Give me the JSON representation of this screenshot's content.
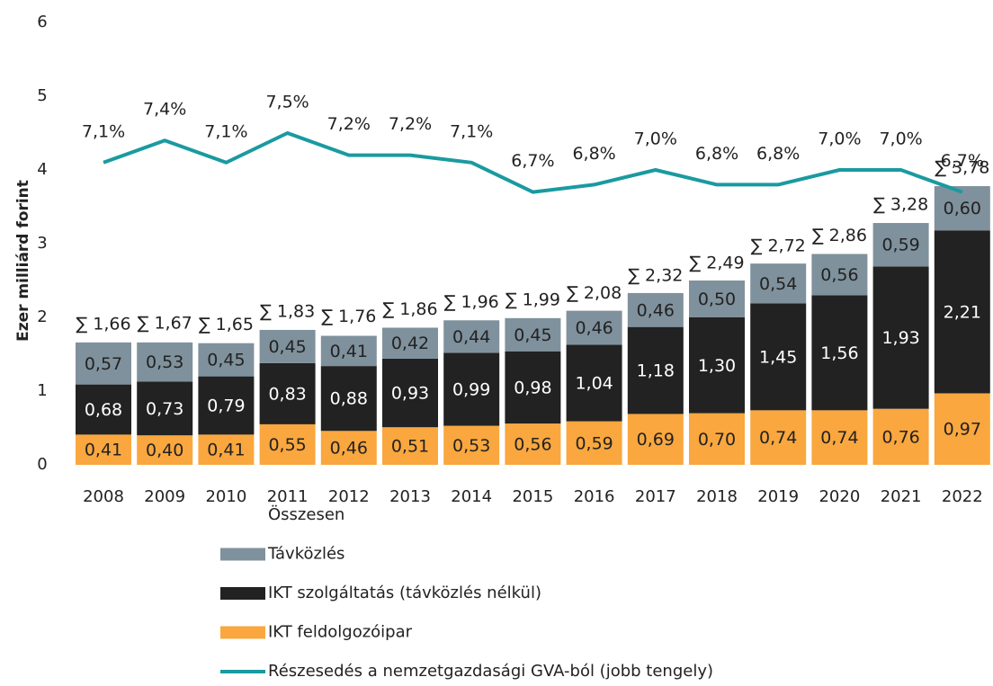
{
  "chart_data": {
    "type": "bar",
    "stacked": true,
    "y_label": "Ezer milliárd forint",
    "categories": [
      "2008",
      "2009",
      "2010",
      "2011",
      "2012",
      "2013",
      "2014",
      "2015",
      "2016",
      "2017",
      "2018",
      "2019",
      "2020",
      "2021",
      "2022"
    ],
    "ylim": [
      0,
      6
    ],
    "yticks": [
      0,
      1,
      2,
      3,
      4,
      5,
      6
    ],
    "y2lim": [
      3,
      9
    ],
    "series": [
      {
        "name": "Összesen",
        "type": "label",
        "values": [
          1.66,
          1.67,
          1.65,
          1.83,
          1.76,
          1.86,
          1.96,
          1.99,
          2.08,
          2.32,
          2.49,
          2.72,
          2.86,
          3.28,
          3.78
        ],
        "value_labels": [
          "∑ 1,66",
          "∑ 1,67",
          "∑ 1,65",
          "∑ 1,83",
          "∑ 1,76",
          "∑ 1,86",
          "∑ 1,96",
          "∑ 1,99",
          "∑ 2,08",
          "∑ 2,32",
          "∑ 2,49",
          "∑ 2,72",
          "∑ 2,86",
          "∑ 3,28",
          "∑ 3,78"
        ]
      },
      {
        "name": "Távközlés",
        "type": "bar",
        "color": "#7f919c",
        "label_color": "#222",
        "values": [
          0.57,
          0.53,
          0.45,
          0.45,
          0.41,
          0.42,
          0.44,
          0.45,
          0.46,
          0.46,
          0.5,
          0.54,
          0.56,
          0.59,
          0.6
        ],
        "value_labels": [
          "0,57",
          "0,53",
          "0,45",
          "0,45",
          "0,41",
          "0,42",
          "0,44",
          "0,45",
          "0,46",
          "0,46",
          "0,50",
          "0,54",
          "0,56",
          "0,59",
          "0,60"
        ]
      },
      {
        "name": "IKT szolgáltatás (távközlés nélkül)",
        "type": "bar",
        "color": "#222222",
        "label_color": "#ffffff",
        "values": [
          0.68,
          0.73,
          0.79,
          0.83,
          0.88,
          0.93,
          0.99,
          0.98,
          1.04,
          1.18,
          1.3,
          1.45,
          1.56,
          1.93,
          2.21
        ],
        "value_labels": [
          "0,68",
          "0,73",
          "0,79",
          "0,83",
          "0,88",
          "0,93",
          "0,99",
          "0,98",
          "1,04",
          "1,18",
          "1,30",
          "1,45",
          "1,56",
          "1,93",
          "2,21"
        ]
      },
      {
        "name": "IKT feldolgozóipar",
        "type": "bar",
        "color": "#f9a73e",
        "label_color": "#222",
        "values": [
          0.41,
          0.4,
          0.41,
          0.55,
          0.46,
          0.51,
          0.53,
          0.56,
          0.59,
          0.69,
          0.7,
          0.74,
          0.74,
          0.76,
          0.97
        ],
        "value_labels": [
          "0,41",
          "0,40",
          "0,41",
          "0,55",
          "0,46",
          "0,51",
          "0,53",
          "0,56",
          "0,59",
          "0,69",
          "0,70",
          "0,74",
          "0,74",
          "0,76",
          "0,97"
        ]
      },
      {
        "name": "Részesedés a nemzetgazdasági GVA-ból (jobb tengely)",
        "type": "line",
        "axis": "y2",
        "color": "#1a9aa0",
        "values": [
          7.1,
          7.4,
          7.1,
          7.5,
          7.2,
          7.2,
          7.1,
          6.7,
          6.8,
          7.0,
          6.8,
          6.8,
          7.0,
          7.0,
          6.7
        ],
        "value_labels": [
          "7,1%",
          "7,4%",
          "7,1%",
          "7,5%",
          "7,2%",
          "7,2%",
          "7,1%",
          "6,7%",
          "6,8%",
          "7,0%",
          "6,8%",
          "6,8%",
          "7,0%",
          "7,0%",
          "6,7%"
        ]
      }
    ]
  }
}
